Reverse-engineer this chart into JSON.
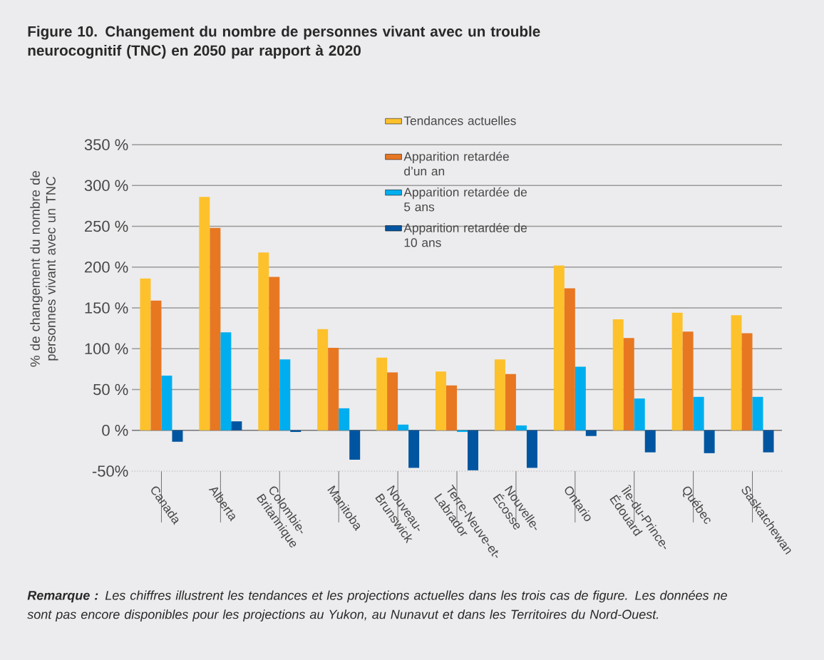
{
  "chart_data": {
    "type": "bar",
    "title": "**Figure 10.**  **Changement du nombre de personnes vivant avec un trouble neurocognitif (TNC) en 2050 par rapport à 2020**",
    "ylabel": "% de changement du nombre de personnes vivant avec un TNC",
    "categories": [
      "Canada",
      "Alberta",
      "Colombie-Britannique",
      "Manitoba",
      "Nouveau-Brunswick",
      "Terre-Neuve-et-Labrador",
      "Nouvelle-Écosse",
      "Ontario",
      "Île-du-Prince-Édouard",
      "Québec",
      "Saskatchewan"
    ],
    "series": [
      {
        "name": "Tendances actuelles",
        "color": "#fdc12c",
        "values": [
          186,
          286,
          218,
          124,
          89,
          72,
          87,
          202,
          136,
          144,
          141
        ]
      },
      {
        "name": "Apparition retardée d’un an",
        "color": "#e87722",
        "values": [
          159,
          248,
          188,
          101,
          71,
          55,
          69,
          174,
          113,
          121,
          119
        ]
      },
      {
        "name": "Apparition retardée de 5 ans",
        "color": "#00aeef",
        "values": [
          67,
          120,
          87,
          27,
          7,
          -2,
          6,
          78,
          39,
          41,
          41
        ]
      },
      {
        "name": "Apparition retardée de 10 ans",
        "color": "#0055a0",
        "values": [
          -14,
          11,
          -2,
          -36,
          -46,
          -49,
          -46,
          -7,
          -27,
          -28,
          -27
        ]
      }
    ],
    "ylim": [
      -50,
      350
    ],
    "yticks": [
      {
        "value": -50,
        "label": "-50%"
      },
      {
        "value": 0,
        "label": "0 %"
      },
      {
        "value": 50,
        "label": "50 %"
      },
      {
        "value": 100,
        "label": "100 %"
      },
      {
        "value": 150,
        "label": "150 %"
      },
      {
        "value": 200,
        "label": "200 %"
      },
      {
        "value": 250,
        "label": "250 %"
      },
      {
        "value": 300,
        "label": "300 %"
      },
      {
        "value": 350,
        "label": "350 %"
      }
    ],
    "grid": "y",
    "legend": "top",
    "annotations": [
      "**Remarque :** Les chiffres illustrent les tendances et les projections actuelles dans les trois cas de figure. Les données ne sont pas encore disponibles pour les projections au Yukon, au Nunavut et dans les Territoires du Nord-Ouest."
    ]
  }
}
